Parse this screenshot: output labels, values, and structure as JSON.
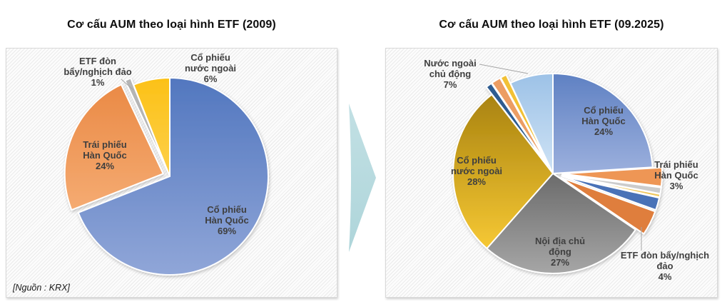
{
  "chart_data": [
    {
      "type": "pie",
      "title": "Cơ cấu AUM theo loại hình ETF (2009)",
      "source_note": "[Nguồn : KRX]",
      "unit": "%",
      "start_angle_deg": 0,
      "clockwise": true,
      "slices": [
        {
          "label": "Cổ phiếu Hàn Quốc",
          "value": 69,
          "value_label": "69%",
          "label_lines": [
            "Cổ phiếu",
            "Hàn Quốc"
          ],
          "color": "#5277bf",
          "color2": "#90a6d8",
          "exploded": false
        },
        {
          "label": "Trái phiếu Hàn Quốc",
          "value": 24,
          "value_label": "24%",
          "label_lines": [
            "Trái phiếu",
            "Hàn Quốc"
          ],
          "color": "#ea8a46",
          "color2": "#f5ab72",
          "exploded": true
        },
        {
          "label": "ETF đòn bẩy/nghịch đảo",
          "value": 1,
          "value_label": "1%",
          "label_lines": [
            "ETF đòn",
            "bẩy/nghịch đảo"
          ],
          "color": "#b5b5b5",
          "exploded": true
        },
        {
          "label": "Cổ phiếu nước ngoài",
          "value": 6,
          "value_label": "6%",
          "label_lines": [
            "Cổ phiếu",
            "nước ngoài"
          ],
          "color": "#fcc117",
          "color2": "#fdd04a",
          "exploded": false
        }
      ]
    },
    {
      "type": "pie",
      "title": "Cơ cấu AUM theo loại hình ETF (09.2025)",
      "unit": "%",
      "start_angle_deg": 0,
      "clockwise": true,
      "slices": [
        {
          "label": "Cổ phiếu Hàn Quốc",
          "value": 24,
          "value_label": "24%",
          "label_lines": [
            "Cổ phiếu",
            "Hàn Quốc"
          ],
          "color": "#5f81c3",
          "color2": "#9cb0dd",
          "exploded": false
        },
        {
          "label": "Trái phiếu Hàn Quốc",
          "value": 3,
          "value_label": "3%",
          "label_lines": [
            "Trái phiếu",
            "Hàn Quốc"
          ],
          "color": "#ee9654",
          "exploded": true
        },
        {
          "label": "",
          "value": 1,
          "color": "#cccccc",
          "exploded": true
        },
        {
          "label": "",
          "value": 0.5,
          "color": "#efc75c",
          "exploded": true
        },
        {
          "label": "",
          "value": 2,
          "color": "#4a72b7",
          "exploded": true
        },
        {
          "label": "ETF đòn bẩy/nghịch đảo",
          "value": 4,
          "value_label": "4%",
          "label_lines": [
            "ETF đòn bẩy/nghịch",
            "đảo"
          ],
          "color": "#df7e3c",
          "exploded": true
        },
        {
          "label": "Nội địa chủ động",
          "value": 27,
          "value_label": "27%",
          "label_lines": [
            "Nội địa chủ",
            "động"
          ],
          "color": "#6b6b6b",
          "color2": "#a6a6a6",
          "exploded": false
        },
        {
          "label": "Cổ phiếu nước ngoài",
          "value": 28,
          "value_label": "28%",
          "label_lines": [
            "Cổ phiếu",
            "nước ngoài"
          ],
          "color": "#a98310",
          "color2": "#f6c834",
          "exploded": false
        },
        {
          "label": "",
          "value": 1,
          "color": "#2d5b90",
          "exploded": true
        },
        {
          "label": "",
          "value": 1.5,
          "color": "#ec9d63",
          "exploded": true
        },
        {
          "label": "",
          "value": 1,
          "color": "#f2c136",
          "exploded": true
        },
        {
          "label": "Nước ngoài chủ động",
          "value": 7,
          "value_label": "7%",
          "label_lines": [
            "Nước ngoài",
            "chủ động"
          ],
          "color": "#9dc2e7",
          "color2": "#cfe3f5",
          "exploded": false
        }
      ]
    }
  ],
  "arrow": {
    "direction": "right",
    "color": "#b9dce1"
  },
  "colors": {
    "panel_hatch": "#ebebeb",
    "panel_border": "#d9d9d9",
    "label_text": "#3f3f3f",
    "title_text": "#0d0d0d",
    "leader_line": "#a6a6a6"
  }
}
